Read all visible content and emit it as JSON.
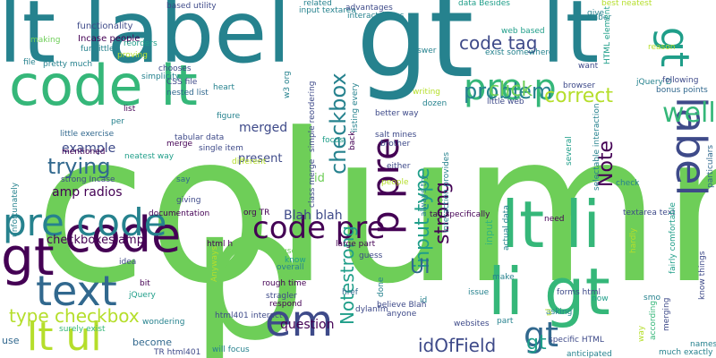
{
  "palette": {
    "dark_purple": "#440154",
    "indigo": "#3e4a89",
    "blue": "#31688e",
    "teal": "#26828e",
    "green_teal": "#1f9e89",
    "green": "#35b779",
    "light_green": "#6ece58",
    "lime": "#b5de2b",
    "yellow": "#fde725"
  },
  "words": [
    {
      "text": "column",
      "color": "light_green"
    },
    {
      "text": "p",
      "color": "light_green"
    },
    {
      "text": "lt label",
      "color": "teal"
    },
    {
      "text": "gt",
      "color": "teal"
    },
    {
      "text": "lt",
      "color": "teal"
    },
    {
      "text": "code lt",
      "color": "green"
    },
    {
      "text": "gt",
      "color": "green_teal"
    },
    {
      "text": "lt li",
      "color": "green"
    },
    {
      "text": "li gt",
      "color": "green"
    },
    {
      "text": "label",
      "color": "indigo"
    },
    {
      "text": "gt",
      "color": "dark_purple"
    },
    {
      "text": "pre p",
      "color": "green"
    },
    {
      "text": "code",
      "color": "dark_purple"
    },
    {
      "text": "pre code",
      "color": "teal"
    },
    {
      "text": "text",
      "color": "blue"
    },
    {
      "text": "em",
      "color": "indigo"
    },
    {
      "text": "code pre",
      "color": "dark_purple"
    },
    {
      "text": "lt ul",
      "color": "lime"
    },
    {
      "text": "p pre",
      "color": "dark_purple"
    },
    {
      "text": "gt",
      "color": "blue"
    },
    {
      "text": "well",
      "color": "green"
    },
    {
      "text": "problem",
      "color": "teal"
    },
    {
      "text": "correct",
      "color": "lime"
    },
    {
      "text": "click",
      "color": "light_green"
    },
    {
      "text": "trying",
      "color": "blue"
    },
    {
      "text": "code tag",
      "color": "indigo"
    },
    {
      "text": "checkbox",
      "color": "teal"
    },
    {
      "text": "input type",
      "color": "green_teal"
    },
    {
      "text": "Note",
      "color": "dark_purple"
    },
    {
      "text": "strong",
      "color": "dark_purple"
    },
    {
      "text": "Notestrong",
      "color": "green_teal"
    },
    {
      "text": "type checkbox",
      "color": "lime"
    },
    {
      "text": "UI",
      "color": "blue"
    },
    {
      "text": "idOfField",
      "color": "indigo"
    },
    {
      "text": "gt",
      "color": "green_teal"
    },
    {
      "text": "amp radios",
      "color": "dark_purple"
    },
    {
      "text": "example",
      "color": "indigo"
    },
    {
      "text": "Blah blah",
      "color": "indigo"
    },
    {
      "text": "checkboxes amp",
      "color": "dark_purple"
    },
    {
      "text": "present",
      "color": "indigo"
    },
    {
      "text": "merged",
      "color": "indigo"
    },
    {
      "text": "question",
      "color": "dark_purple"
    },
    {
      "text": "ul id",
      "color": "light_green"
    },
    {
      "text": "input",
      "color": "green"
    },
    {
      "text": "Incase people",
      "color": "dark_purple"
    },
    {
      "text": "functionality",
      "color": "indigo"
    },
    {
      "text": "reorders",
      "color": "green_teal"
    },
    {
      "text": "proving",
      "color": "lime"
    },
    {
      "text": "fun little",
      "color": "teal"
    },
    {
      "text": "making",
      "color": "light_green"
    },
    {
      "text": "file",
      "color": "teal"
    },
    {
      "text": "pretty much",
      "color": "teal"
    },
    {
      "text": "simplicity",
      "color": "teal"
    },
    {
      "text": "chooses",
      "color": "indigo"
    },
    {
      "text": "CSS file",
      "color": "indigo"
    },
    {
      "text": "nested list",
      "color": "blue"
    },
    {
      "text": "heart",
      "color": "teal"
    },
    {
      "text": "list",
      "color": "dark_purple"
    },
    {
      "text": "per",
      "color": "teal"
    },
    {
      "text": "little exercise",
      "color": "blue"
    },
    {
      "text": "mentioned",
      "color": "dark_purple"
    },
    {
      "text": "figure",
      "color": "teal"
    },
    {
      "text": "tabular data",
      "color": "indigo"
    },
    {
      "text": "merge",
      "color": "dark_purple"
    },
    {
      "text": "neatest way",
      "color": "green_teal"
    },
    {
      "text": "single item",
      "color": "indigo"
    },
    {
      "text": "different",
      "color": "lime"
    },
    {
      "text": "say",
      "color": "blue"
    },
    {
      "text": "strong Incase",
      "color": "indigo"
    },
    {
      "text": "giving",
      "color": "indigo"
    },
    {
      "text": "documentation",
      "color": "dark_purple"
    },
    {
      "text": "org TR",
      "color": "dark_purple"
    },
    {
      "text": "html h",
      "color": "dark_purple"
    },
    {
      "text": "unfortunately",
      "color": "teal"
    },
    {
      "text": "idea",
      "color": "indigo"
    },
    {
      "text": "bit",
      "color": "dark_purple"
    },
    {
      "text": "jQuery",
      "color": "green_teal"
    },
    {
      "text": "useful",
      "color": "light_green"
    },
    {
      "text": "know",
      "color": "green_teal"
    },
    {
      "text": "overall",
      "color": "teal"
    },
    {
      "text": "rough time",
      "color": "dark_purple"
    },
    {
      "text": "respond",
      "color": "dark_purple"
    },
    {
      "text": "stragler",
      "color": "indigo"
    },
    {
      "text": "html401 interact",
      "color": "indigo"
    },
    {
      "text": "wondering",
      "color": "teal"
    },
    {
      "text": "surely exist",
      "color": "green"
    },
    {
      "text": "use",
      "color": "blue"
    },
    {
      "text": "become",
      "color": "blue"
    },
    {
      "text": "TR html401",
      "color": "indigo"
    },
    {
      "text": "will focus",
      "color": "teal"
    },
    {
      "text": "based utility",
      "color": "indigo"
    },
    {
      "text": "related",
      "color": "teal"
    },
    {
      "text": "input textarea",
      "color": "teal"
    },
    {
      "text": "interact forms",
      "color": "teal"
    },
    {
      "text": "advantages",
      "color": "indigo"
    },
    {
      "text": "data Besides",
      "color": "green_teal"
    },
    {
      "text": "give",
      "color": "teal"
    },
    {
      "text": "best neatest",
      "color": "lime"
    },
    {
      "text": "number",
      "color": "teal"
    },
    {
      "text": "web based",
      "color": "green_teal"
    },
    {
      "text": "exist somewhere",
      "color": "teal"
    },
    {
      "text": "answer",
      "color": "teal"
    },
    {
      "text": "reason",
      "color": "lime"
    },
    {
      "text": "want",
      "color": "indigo"
    },
    {
      "text": "jQuery D",
      "color": "teal"
    },
    {
      "text": "HTML element",
      "color": "green_teal"
    },
    {
      "text": "browser",
      "color": "indigo"
    },
    {
      "text": "following",
      "color": "indigo"
    },
    {
      "text": "bonus points",
      "color": "blue"
    },
    {
      "text": "writing",
      "color": "lime"
    },
    {
      "text": "little web",
      "color": "indigo"
    },
    {
      "text": "dozen",
      "color": "teal"
    },
    {
      "text": "better way",
      "color": "indigo"
    },
    {
      "text": "salt mines",
      "color": "indigo"
    },
    {
      "text": "brother",
      "color": "indigo"
    },
    {
      "text": "either",
      "color": "indigo"
    },
    {
      "text": "people",
      "color": "lime"
    },
    {
      "text": "need",
      "color": "dark_purple"
    },
    {
      "text": "textarea text",
      "color": "indigo"
    },
    {
      "text": "check",
      "color": "teal"
    },
    {
      "text": "hardly",
      "color": "lime"
    },
    {
      "text": "fairly comfortable",
      "color": "green_teal"
    },
    {
      "text": "know things",
      "color": "indigo"
    },
    {
      "text": "merging",
      "color": "indigo"
    },
    {
      "text": "particulars",
      "color": "blue"
    },
    {
      "text": "way",
      "color": "lime"
    },
    {
      "text": "names",
      "color": "teal"
    },
    {
      "text": "much exactly",
      "color": "teal"
    },
    {
      "text": "according",
      "color": "green"
    },
    {
      "text": "smo",
      "color": "teal"
    },
    {
      "text": "w3 org",
      "color": "teal"
    },
    {
      "text": "simple reordering",
      "color": "indigo"
    },
    {
      "text": "listing every",
      "color": "teal"
    },
    {
      "text": "focus",
      "color": "green_teal"
    },
    {
      "text": "back",
      "color": "dark_purple"
    },
    {
      "text": "class merge",
      "color": "indigo"
    },
    {
      "text": "always try",
      "color": "teal"
    },
    {
      "text": "interaction provides",
      "color": "teal"
    },
    {
      "text": "tag specifically",
      "color": "dark_purple"
    },
    {
      "text": "actual data",
      "color": "teal"
    },
    {
      "text": "selectable interaction",
      "color": "teal"
    },
    {
      "text": "several",
      "color": "green_teal"
    },
    {
      "text": "large part",
      "color": "dark_purple"
    },
    {
      "text": "guess",
      "color": "indigo"
    },
    {
      "text": "href",
      "color": "blue"
    },
    {
      "text": "id",
      "color": "teal"
    },
    {
      "text": "issue",
      "color": "teal"
    },
    {
      "text": "make",
      "color": "teal"
    },
    {
      "text": "forms html",
      "color": "indigo"
    },
    {
      "text": "specific HTML",
      "color": "indigo"
    },
    {
      "text": "asking",
      "color": "teal"
    },
    {
      "text": "part",
      "color": "teal"
    },
    {
      "text": "anticipated",
      "color": "teal"
    },
    {
      "text": "now",
      "color": "green_teal"
    },
    {
      "text": "ul",
      "color": "lime"
    },
    {
      "text": "dylanfm",
      "color": "indigo"
    },
    {
      "text": "done",
      "color": "teal"
    },
    {
      "text": "anyone",
      "color": "indigo"
    },
    {
      "text": "websites",
      "color": "indigo"
    },
    {
      "text": "believe Blah",
      "color": "indigo"
    },
    {
      "text": "Anyways",
      "color": "lime"
    }
  ]
}
